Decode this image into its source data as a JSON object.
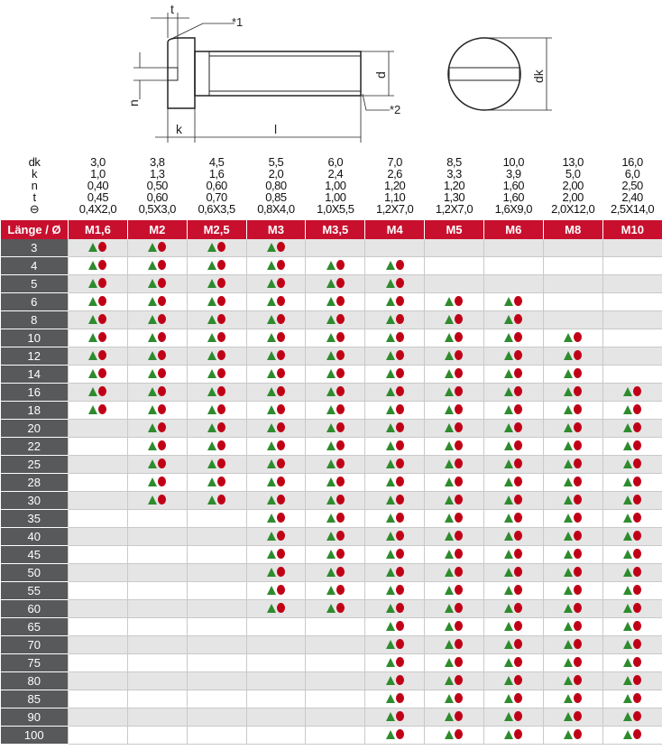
{
  "drawing": {
    "labels": {
      "t": "t",
      "note1": "*1",
      "note2": "*2",
      "n": "n",
      "k": "k",
      "l": "l",
      "d": "d",
      "dk": "dk"
    }
  },
  "specs": [
    {
      "label": "dk",
      "values": [
        "3,0",
        "3,8",
        "4,5",
        "5,5",
        "6,0",
        "7,0",
        "8,5",
        "10,0",
        "13,0",
        "16,0"
      ]
    },
    {
      "label": "k",
      "values": [
        "1,0",
        "1,3",
        "1,6",
        "2,0",
        "2,4",
        "2,6",
        "3,3",
        "3,9",
        "5,0",
        "6,0"
      ]
    },
    {
      "label": "n",
      "values": [
        "0,40",
        "0,50",
        "0,60",
        "0,80",
        "1,00",
        "1,20",
        "1,20",
        "1,60",
        "2,00",
        "2,50"
      ]
    },
    {
      "label": "t",
      "values": [
        "0,45",
        "0,60",
        "0,70",
        "0,85",
        "1,00",
        "1,10",
        "1,30",
        "1,60",
        "2,00",
        "2,40"
      ]
    },
    {
      "label": "⊖",
      "values": [
        "0,4X2,0",
        "0,5X3,0",
        "0,6X3,5",
        "0,8X4,0",
        "1,0X5,5",
        "1,2X7,0",
        "1,2X7,0",
        "1,6X9,0",
        "2,0X12,0",
        "2,5X14,0"
      ]
    }
  ],
  "header": {
    "corner": "Länge / Ø",
    "sizes": [
      "M1,6",
      "M2",
      "M2,5",
      "M3",
      "M3,5",
      "M4",
      "M5",
      "M6",
      "M8",
      "M10"
    ]
  },
  "colors": {
    "accent": "#c8102e",
    "triangle": "#2e8b2e",
    "circle": "#c00016",
    "label_bg": "#58595b"
  },
  "rows": [
    {
      "length": "3",
      "available": [
        1,
        1,
        1,
        1,
        0,
        0,
        0,
        0,
        0,
        0
      ]
    },
    {
      "length": "4",
      "available": [
        1,
        1,
        1,
        1,
        1,
        1,
        0,
        0,
        0,
        0
      ]
    },
    {
      "length": "5",
      "available": [
        1,
        1,
        1,
        1,
        1,
        1,
        0,
        0,
        0,
        0
      ]
    },
    {
      "length": "6",
      "available": [
        1,
        1,
        1,
        1,
        1,
        1,
        1,
        1,
        0,
        0
      ]
    },
    {
      "length": "8",
      "available": [
        1,
        1,
        1,
        1,
        1,
        1,
        1,
        1,
        0,
        0
      ]
    },
    {
      "length": "10",
      "available": [
        1,
        1,
        1,
        1,
        1,
        1,
        1,
        1,
        1,
        0
      ]
    },
    {
      "length": "12",
      "available": [
        1,
        1,
        1,
        1,
        1,
        1,
        1,
        1,
        1,
        0
      ]
    },
    {
      "length": "14",
      "available": [
        1,
        1,
        1,
        1,
        1,
        1,
        1,
        1,
        1,
        0
      ]
    },
    {
      "length": "16",
      "available": [
        1,
        1,
        1,
        1,
        1,
        1,
        1,
        1,
        1,
        1
      ]
    },
    {
      "length": "18",
      "available": [
        1,
        1,
        1,
        1,
        1,
        1,
        1,
        1,
        1,
        1
      ]
    },
    {
      "length": "20",
      "available": [
        0,
        1,
        1,
        1,
        1,
        1,
        1,
        1,
        1,
        1
      ]
    },
    {
      "length": "22",
      "available": [
        0,
        1,
        1,
        1,
        1,
        1,
        1,
        1,
        1,
        1
      ]
    },
    {
      "length": "25",
      "available": [
        0,
        1,
        1,
        1,
        1,
        1,
        1,
        1,
        1,
        1
      ]
    },
    {
      "length": "28",
      "available": [
        0,
        1,
        1,
        1,
        1,
        1,
        1,
        1,
        1,
        1
      ]
    },
    {
      "length": "30",
      "available": [
        0,
        1,
        1,
        1,
        1,
        1,
        1,
        1,
        1,
        1
      ]
    },
    {
      "length": "35",
      "available": [
        0,
        0,
        0,
        1,
        1,
        1,
        1,
        1,
        1,
        1
      ]
    },
    {
      "length": "40",
      "available": [
        0,
        0,
        0,
        1,
        1,
        1,
        1,
        1,
        1,
        1
      ]
    },
    {
      "length": "45",
      "available": [
        0,
        0,
        0,
        1,
        1,
        1,
        1,
        1,
        1,
        1
      ]
    },
    {
      "length": "50",
      "available": [
        0,
        0,
        0,
        1,
        1,
        1,
        1,
        1,
        1,
        1
      ]
    },
    {
      "length": "55",
      "available": [
        0,
        0,
        0,
        1,
        1,
        1,
        1,
        1,
        1,
        1
      ]
    },
    {
      "length": "60",
      "available": [
        0,
        0,
        0,
        1,
        1,
        1,
        1,
        1,
        1,
        1
      ]
    },
    {
      "length": "65",
      "available": [
        0,
        0,
        0,
        0,
        0,
        1,
        1,
        1,
        1,
        1
      ]
    },
    {
      "length": "70",
      "available": [
        0,
        0,
        0,
        0,
        0,
        1,
        1,
        1,
        1,
        1
      ]
    },
    {
      "length": "75",
      "available": [
        0,
        0,
        0,
        0,
        0,
        1,
        1,
        1,
        1,
        1
      ]
    },
    {
      "length": "80",
      "available": [
        0,
        0,
        0,
        0,
        0,
        1,
        1,
        1,
        1,
        1
      ]
    },
    {
      "length": "85",
      "available": [
        0,
        0,
        0,
        0,
        0,
        1,
        1,
        1,
        1,
        1
      ]
    },
    {
      "length": "90",
      "available": [
        0,
        0,
        0,
        0,
        0,
        1,
        1,
        1,
        1,
        1
      ]
    },
    {
      "length": "100",
      "available": [
        0,
        0,
        0,
        0,
        0,
        1,
        1,
        1,
        1,
        1
      ]
    }
  ]
}
